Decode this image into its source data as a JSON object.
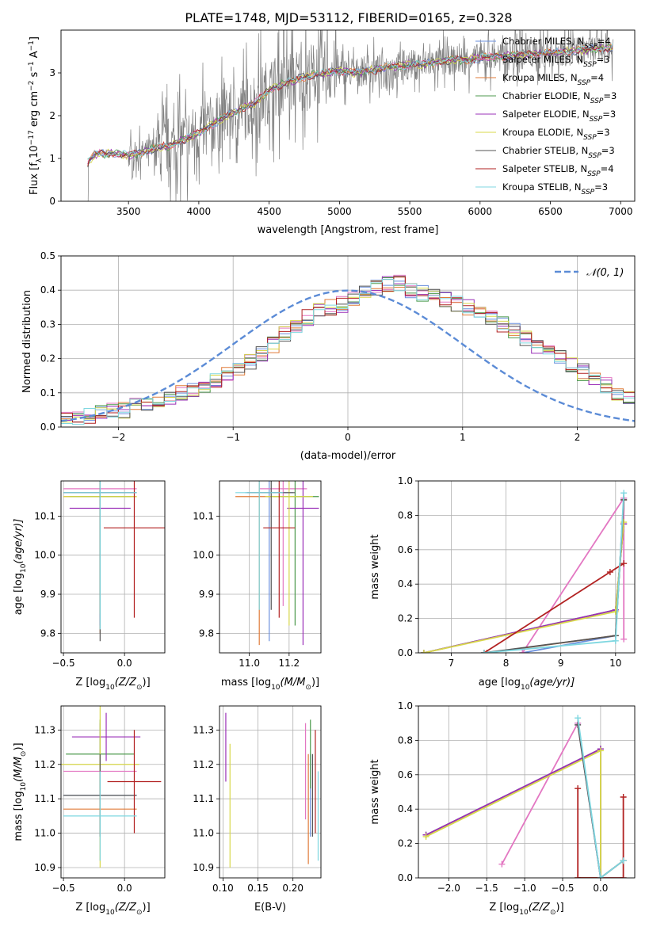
{
  "figure": {
    "title": "PLATE=1748, MJD=53112, FIBERID=0165, z=0.328"
  },
  "legend": {
    "series": [
      {
        "label": "Chabrier MILES, N",
        "sub": "SSP",
        "suffix": "=4",
        "color": "#6a8fdc"
      },
      {
        "label": "Salpeter MILES, N",
        "sub": "SSP",
        "suffix": "=3",
        "color": "#e377c2"
      },
      {
        "label": "Kroupa MILES, N",
        "sub": "SSP",
        "suffix": "=4",
        "color": "#e07b39"
      },
      {
        "label": "Chabrier ELODIE, N",
        "sub": "SSP",
        "suffix": "=3",
        "color": "#4c9a4c"
      },
      {
        "label": "Salpeter ELODIE, N",
        "sub": "SSP",
        "suffix": "=3",
        "color": "#9b30b8"
      },
      {
        "label": "Kroupa ELODIE, N",
        "sub": "SSP",
        "suffix": "=3",
        "color": "#d8d84a"
      },
      {
        "label": "Chabrier STELIB, N",
        "sub": "SSP",
        "suffix": "=3",
        "color": "#555555"
      },
      {
        "label": "Salpeter STELIB, N",
        "sub": "SSP",
        "suffix": "=4",
        "color": "#b22222"
      },
      {
        "label": "Kroupa STELIB, N",
        "sub": "SSP",
        "suffix": "=3",
        "color": "#7fd7e0"
      }
    ],
    "gauss_label": "𝒩(0, 1)"
  },
  "chart_data": [
    {
      "id": "spectrum",
      "type": "line",
      "xlabel": "wavelength [Angstrom, rest frame]",
      "ylabel_pre": "Flux [f",
      "ylabel_sub": "λ",
      "ylabel_mid": "10",
      "ylabel_sup": "−17",
      "ylabel_post": " erg cm",
      "ylabel_sup2": "−2",
      "ylabel_post2": " s",
      "ylabel_sup3": "−1",
      "ylabel_post3": " A",
      "ylabel_sup4": "−1",
      "ylabel_end": "]",
      "xlim": [
        3020,
        7100
      ],
      "ylim": [
        0,
        4.0
      ],
      "xticks": [
        3500,
        4000,
        4500,
        5000,
        5500,
        6000,
        6500,
        7000
      ],
      "yticks": [
        0,
        1,
        2,
        3
      ],
      "continuum": [
        [
          3210,
          0.9
        ],
        [
          3260,
          1.1
        ],
        [
          3400,
          1.12
        ],
        [
          3500,
          1.08
        ],
        [
          3600,
          1.15
        ],
        [
          3700,
          1.25
        ],
        [
          3800,
          1.3
        ],
        [
          3900,
          1.45
        ],
        [
          4000,
          1.6
        ],
        [
          4100,
          1.8
        ],
        [
          4200,
          2.0
        ],
        [
          4300,
          2.15
        ],
        [
          4400,
          2.3
        ],
        [
          4500,
          2.6
        ],
        [
          4600,
          2.75
        ],
        [
          4700,
          2.85
        ],
        [
          4800,
          2.95
        ],
        [
          4900,
          3.0
        ],
        [
          5000,
          3.05
        ],
        [
          5100,
          3.0
        ],
        [
          5200,
          3.05
        ],
        [
          5300,
          3.1
        ],
        [
          5400,
          3.15
        ],
        [
          5500,
          3.2
        ],
        [
          5600,
          3.2
        ],
        [
          5700,
          3.25
        ],
        [
          5800,
          3.3
        ],
        [
          5900,
          3.3
        ],
        [
          6000,
          3.35
        ],
        [
          6200,
          3.4
        ],
        [
          6400,
          3.45
        ],
        [
          6600,
          3.5
        ],
        [
          6800,
          3.55
        ],
        [
          6950,
          3.6
        ]
      ]
    },
    {
      "id": "residuals",
      "type": "bar",
      "xlabel": "(data-model)/error",
      "ylabel": "Normed distribution",
      "xlim": [
        -2.5,
        2.5
      ],
      "ylim": [
        0,
        0.5
      ],
      "xticks": [
        -2,
        -1,
        0,
        1,
        2
      ],
      "yticks": [
        0.0,
        0.1,
        0.2,
        0.3,
        0.4,
        0.5
      ],
      "bin_width": 0.1,
      "hist": [
        0.02,
        0.03,
        0.03,
        0.04,
        0.05,
        0.05,
        0.06,
        0.07,
        0.08,
        0.09,
        0.1,
        0.11,
        0.12,
        0.14,
        0.15,
        0.17,
        0.19,
        0.21,
        0.24,
        0.27,
        0.3,
        0.32,
        0.34,
        0.35,
        0.36,
        0.38,
        0.4,
        0.41,
        0.42,
        0.42,
        0.4,
        0.39,
        0.38,
        0.37,
        0.36,
        0.35,
        0.34,
        0.32,
        0.3,
        0.28,
        0.26,
        0.24,
        0.22,
        0.2,
        0.18,
        0.16,
        0.14,
        0.12,
        0.1,
        0.09,
        0.08,
        0.07,
        0.06,
        0.05,
        0.04,
        0.04,
        0.03,
        0.03,
        0.03,
        0.02
      ]
    },
    {
      "id": "age_vs_Z",
      "type": "scatter",
      "xlabel_pre": "Z [log",
      "xlabel_sub": "10",
      "xlabel_post": "(Z/Z",
      "xlabel_sub2": "⊙",
      "xlabel_end": ")]",
      "ylabel_pre": "age  [log",
      "ylabel_sub": "10",
      "ylabel_post": "(age/yr)]",
      "xlim": [
        -0.52,
        0.33
      ],
      "ylim": [
        9.75,
        10.19
      ],
      "xticks": [
        -0.5,
        0.0
      ],
      "yticks": [
        9.8,
        9.9,
        10.0,
        10.1
      ],
      "points": [
        {
          "x": -0.2,
          "y": 10.16,
          "xerr": 0.3,
          "yerr": 0.3,
          "c": 0
        },
        {
          "x": -0.2,
          "y": 10.17,
          "xerr": 0.3,
          "yerr": 0.33,
          "c": 1
        },
        {
          "x": -0.2,
          "y": 10.15,
          "xerr": 0.3,
          "yerr": 0.35,
          "c": 2
        },
        {
          "x": -0.2,
          "y": 10.15,
          "xerr": 0.25,
          "yerr": 0.3,
          "c": 3
        },
        {
          "x": -0.2,
          "y": 10.12,
          "xerr": 0.25,
          "yerr": 0.3,
          "c": 4
        },
        {
          "x": -0.2,
          "y": 10.15,
          "xerr": 0.3,
          "yerr": 0.3,
          "c": 5
        },
        {
          "x": -0.2,
          "y": 10.16,
          "xerr": 0.3,
          "yerr": 0.38,
          "c": 6
        },
        {
          "x": 0.08,
          "y": 10.07,
          "xerr": 0.25,
          "yerr": 0.23,
          "c": 7
        },
        {
          "x": -0.2,
          "y": 10.16,
          "xerr": 0.3,
          "yerr": 0.35,
          "c": 8
        }
      ]
    },
    {
      "id": "age_vs_mass",
      "type": "scatter",
      "xlabel_pre": "mass [log",
      "xlabel_sub": "10",
      "xlabel_post": "(M/M",
      "xlabel_sub2": "⊙",
      "xlabel_end": ")]",
      "xlim": [
        10.85,
        11.36
      ],
      "ylim": [
        9.75,
        10.19
      ],
      "xticks": [
        11.0,
        11.2
      ],
      "yticks": [
        9.8,
        9.9,
        10.0,
        10.1
      ],
      "points": [
        {
          "x": 11.1,
          "y": 10.16,
          "xerr": 0.12,
          "yerr": 0.38,
          "c": 0
        },
        {
          "x": 11.17,
          "y": 10.17,
          "xerr": 0.12,
          "yerr": 0.3,
          "c": 1
        },
        {
          "x": 11.05,
          "y": 10.15,
          "xerr": 0.12,
          "yerr": 0.38,
          "c": 2
        },
        {
          "x": 11.23,
          "y": 10.15,
          "xerr": 0.12,
          "yerr": 0.33,
          "c": 3
        },
        {
          "x": 11.27,
          "y": 10.12,
          "xerr": 0.08,
          "yerr": 0.35,
          "c": 4
        },
        {
          "x": 11.2,
          "y": 10.15,
          "xerr": 0.12,
          "yerr": 0.33,
          "c": 5
        },
        {
          "x": 11.11,
          "y": 10.16,
          "xerr": 0.12,
          "yerr": 0.3,
          "c": 6
        },
        {
          "x": 11.15,
          "y": 10.07,
          "xerr": 0.08,
          "yerr": 0.23,
          "c": 7
        },
        {
          "x": 11.05,
          "y": 10.16,
          "xerr": 0.12,
          "yerr": 0.3,
          "c": 8
        }
      ]
    },
    {
      "id": "weight_vs_age",
      "type": "line",
      "xlabel_pre": "age  [log",
      "xlabel_sub": "10",
      "xlabel_post": "(age/yr)]",
      "ylabel": "mass weight",
      "xlim": [
        6.4,
        10.35
      ],
      "ylim": [
        0,
        1.0
      ],
      "xticks": [
        7,
        8,
        9,
        10
      ],
      "yticks": [
        0.0,
        0.2,
        0.4,
        0.6,
        0.8,
        1.0
      ],
      "series": [
        {
          "c": 0,
          "x": [
            8.3,
            10.0,
            10.15
          ],
          "y": [
            0.0,
            0.1,
            0.9
          ]
        },
        {
          "c": 1,
          "x": [
            8.3,
            10.15,
            10.15
          ],
          "y": [
            0.0,
            0.9,
            0.08
          ]
        },
        {
          "c": 2,
          "x": [
            7.65,
            10.0,
            10.15
          ],
          "y": [
            0.0,
            0.1,
            0.89
          ]
        },
        {
          "c": 3,
          "x": [
            6.5,
            10.0,
            10.15
          ],
          "y": [
            0.0,
            0.25,
            0.75
          ]
        },
        {
          "c": 4,
          "x": [
            6.5,
            10.0,
            10.15
          ],
          "y": [
            0.0,
            0.25,
            0.75
          ]
        },
        {
          "c": 5,
          "x": [
            6.5,
            10.0,
            10.15
          ],
          "y": [
            0.0,
            0.24,
            0.76
          ]
        },
        {
          "c": 6,
          "x": [
            7.6,
            10.0,
            10.15
          ],
          "y": [
            0.0,
            0.1,
            0.89
          ]
        },
        {
          "c": 7,
          "x": [
            7.6,
            9.9,
            10.15
          ],
          "y": [
            0.0,
            0.47,
            0.52
          ]
        },
        {
          "c": 8,
          "x": [
            7.6,
            10.0,
            10.15
          ],
          "y": [
            0.0,
            0.07,
            0.93
          ]
        }
      ]
    },
    {
      "id": "mass_vs_Z",
      "type": "scatter",
      "xlabel_pre": "Z [log",
      "xlabel_sub": "10",
      "xlabel_post": "(Z/Z",
      "xlabel_sub2": "⊙",
      "xlabel_end": ")]",
      "ylabel_pre": "mass [log",
      "ylabel_sub": "10",
      "ylabel_post": "(M/M",
      "ylabel_sub2": "⊙",
      "ylabel_end": ")]",
      "xlim": [
        -0.52,
        0.33
      ],
      "ylim": [
        10.87,
        11.37
      ],
      "xticks": [
        -0.5,
        0.0
      ],
      "yticks": [
        10.9,
        11.0,
        11.1,
        11.2,
        11.3
      ],
      "points": [
        {
          "x": -0.2,
          "y": 11.11,
          "xerr": 0.3,
          "yerr": 0.12,
          "c": 0
        },
        {
          "x": -0.2,
          "y": 11.18,
          "xerr": 0.3,
          "yerr": 0.14,
          "c": 1
        },
        {
          "x": -0.2,
          "y": 11.07,
          "xerr": 0.3,
          "yerr": 0.15,
          "c": 2
        },
        {
          "x": -0.2,
          "y": 11.23,
          "xerr": 0.28,
          "yerr": 0.1,
          "c": 3
        },
        {
          "x": -0.15,
          "y": 11.28,
          "xerr": 0.28,
          "yerr": 0.07,
          "c": 4
        },
        {
          "x": -0.2,
          "y": 11.2,
          "xerr": 0.32,
          "yerr": 0.3,
          "c": 5
        },
        {
          "x": -0.2,
          "y": 11.11,
          "xerr": 0.3,
          "yerr": 0.12,
          "c": 6
        },
        {
          "x": 0.08,
          "y": 11.15,
          "xerr": 0.22,
          "yerr": 0.15,
          "c": 7
        },
        {
          "x": -0.2,
          "y": 11.05,
          "xerr": 0.3,
          "yerr": 0.13,
          "c": 8
        }
      ]
    },
    {
      "id": "mass_vs_EBV",
      "type": "scatter",
      "xlabel": "E(B-V)",
      "xlim": [
        0.095,
        0.24
      ],
      "ylim": [
        10.87,
        11.37
      ],
      "xticks": [
        0.1,
        0.15,
        0.2
      ],
      "yticks": [
        10.9,
        11.0,
        11.1,
        11.2,
        11.3
      ],
      "points": [
        {
          "x": 0.225,
          "y": 11.11,
          "yerr": 0.12,
          "c": 0
        },
        {
          "x": 0.218,
          "y": 11.18,
          "yerr": 0.14,
          "c": 1
        },
        {
          "x": 0.222,
          "y": 11.07,
          "yerr": 0.16,
          "c": 2
        },
        {
          "x": 0.225,
          "y": 11.23,
          "yerr": 0.1,
          "c": 3
        },
        {
          "x": 0.104,
          "y": 11.25,
          "yerr": 0.1,
          "c": 4
        },
        {
          "x": 0.11,
          "y": 11.08,
          "yerr": 0.18,
          "c": 5
        },
        {
          "x": 0.228,
          "y": 11.11,
          "yerr": 0.12,
          "c": 6
        },
        {
          "x": 0.232,
          "y": 11.15,
          "yerr": 0.15,
          "c": 7
        },
        {
          "x": 0.236,
          "y": 11.05,
          "yerr": 0.13,
          "c": 8
        }
      ]
    },
    {
      "id": "weight_vs_Z",
      "type": "line",
      "xlabel_pre": "Z [log",
      "xlabel_sub": "10",
      "xlabel_post": "(Z/Z",
      "xlabel_sub2": "⊙",
      "xlabel_end": ")]",
      "ylabel": "mass weight",
      "xlim": [
        -2.4,
        0.45
      ],
      "ylim": [
        0,
        1.0
      ],
      "xticks": [
        -2.0,
        -1.5,
        -1.0,
        -0.5,
        0.0
      ],
      "yticks": [
        0.0,
        0.2,
        0.4,
        0.6,
        0.8,
        1.0
      ],
      "series": [
        {
          "c": 0,
          "x": [
            -0.3,
            0.0,
            0.3
          ],
          "y": [
            0.9,
            0.0,
            0.1
          ]
        },
        {
          "c": 1,
          "x": [
            -1.3,
            -0.3,
            0.0
          ],
          "y": [
            0.08,
            0.9,
            0.0
          ]
        },
        {
          "c": 2,
          "x": [
            -0.3,
            0.0,
            0.3
          ],
          "y": [
            0.0,
            0.0,
            0.1
          ]
        },
        {
          "c": 3,
          "x": [
            -2.3,
            0.0,
            0.0
          ],
          "y": [
            0.25,
            0.75,
            0.0
          ]
        },
        {
          "c": 4,
          "x": [
            -2.3,
            0.0,
            0.0
          ],
          "y": [
            0.25,
            0.75,
            0.0
          ]
        },
        {
          "c": 5,
          "x": [
            -2.3,
            0.0,
            0.0
          ],
          "y": [
            0.24,
            0.74,
            0.0
          ]
        },
        {
          "c": 6,
          "x": [
            -0.3,
            0.0,
            0.3
          ],
          "y": [
            0.89,
            0.0,
            0.1
          ]
        },
        {
          "c": 7,
          "x": [
            -0.3,
            -0.3,
            0.3,
            0.3
          ],
          "y": [
            0.52,
            0.0,
            0.0,
            0.47
          ]
        },
        {
          "c": 8,
          "x": [
            -0.3,
            0.0,
            0.3
          ],
          "y": [
            0.93,
            0.0,
            0.1
          ]
        }
      ]
    }
  ]
}
